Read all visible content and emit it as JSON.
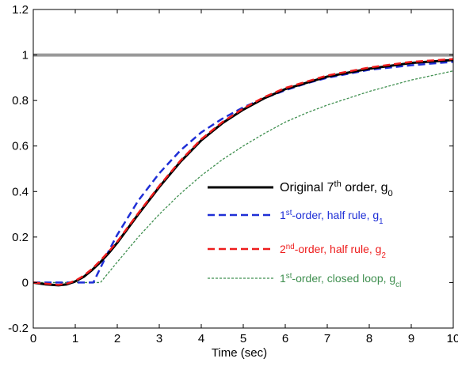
{
  "chart_data": {
    "type": "line",
    "xlabel": "Time (sec)",
    "xlim": [
      0,
      10
    ],
    "ylim": [
      -0.2,
      1.2
    ],
    "x_ticks": [
      0,
      1,
      2,
      3,
      4,
      5,
      6,
      7,
      8,
      9,
      10
    ],
    "y_ticks": [
      -0.2,
      0,
      0.2,
      0.4,
      0.6,
      0.8,
      1,
      1.2
    ],
    "x_tick_labels": [
      "0",
      "1",
      "2",
      "3",
      "4",
      "5",
      "6",
      "7",
      "8",
      "9",
      "10"
    ],
    "y_tick_labels": [
      "-0.2",
      "0",
      "0.2",
      "0.4",
      "0.6",
      "0.8",
      "1",
      "1.2"
    ],
    "reference_line": {
      "y": 1,
      "color": "#999999"
    },
    "legend_position": "center-right",
    "series": [
      {
        "name": "Original 7th order, g0",
        "legend_parts": [
          {
            "t": "Original 7",
            "s": "n"
          },
          {
            "t": "th",
            "s": "sup"
          },
          {
            "t": " order, g",
            "s": "n"
          },
          {
            "t": "0",
            "s": "sub"
          }
        ],
        "color": "#000000",
        "style": "solid",
        "width": 3,
        "x": [
          0,
          0.3,
          0.6,
          0.8,
          1.0,
          1.2,
          1.4,
          1.6,
          1.8,
          2.0,
          2.5,
          3.0,
          3.5,
          4.0,
          4.5,
          5.0,
          5.5,
          6.0,
          7.0,
          8.0,
          9.0,
          10.0
        ],
        "y": [
          0,
          -0.008,
          -0.012,
          -0.008,
          0.005,
          0.025,
          0.055,
          0.09,
          0.13,
          0.175,
          0.3,
          0.42,
          0.53,
          0.625,
          0.7,
          0.76,
          0.81,
          0.85,
          0.905,
          0.94,
          0.965,
          0.978
        ]
      },
      {
        "name": "1st-order, half rule, g1",
        "legend_parts": [
          {
            "t": "1",
            "s": "n"
          },
          {
            "t": "st",
            "s": "sup"
          },
          {
            "t": "-order, half rule, g",
            "s": "n"
          },
          {
            "t": "1",
            "s": "sub"
          }
        ],
        "color": "#1f2fd6",
        "style": "dashed",
        "width": 2.5,
        "x": [
          0,
          1.43,
          1.6,
          1.8,
          2.0,
          2.5,
          3.0,
          3.5,
          4.0,
          4.5,
          5.0,
          5.5,
          6.0,
          6.5,
          7.0,
          8.0,
          9.0,
          10.0
        ],
        "y": [
          0,
          0,
          0.065,
          0.14,
          0.21,
          0.36,
          0.48,
          0.58,
          0.66,
          0.72,
          0.77,
          0.81,
          0.845,
          0.875,
          0.9,
          0.935,
          0.955,
          0.97
        ]
      },
      {
        "name": "2nd-order, half rule, g2",
        "legend_parts": [
          {
            "t": "2",
            "s": "n"
          },
          {
            "t": "nd",
            "s": "sup"
          },
          {
            "t": "-order, half rule, g",
            "s": "n"
          },
          {
            "t": "2",
            "s": "sub"
          }
        ],
        "color": "#ee1c1c",
        "style": "dashed",
        "width": 2.5,
        "x": [
          0,
          0.3,
          0.6,
          0.8,
          1.0,
          1.2,
          1.4,
          1.6,
          1.8,
          2.0,
          2.5,
          3.0,
          3.5,
          4.0,
          4.5,
          5.0,
          5.5,
          6.0,
          7.0,
          8.0,
          9.0,
          10.0
        ],
        "y": [
          0,
          -0.005,
          -0.01,
          -0.005,
          0.008,
          0.03,
          0.06,
          0.097,
          0.137,
          0.18,
          0.305,
          0.425,
          0.535,
          0.63,
          0.705,
          0.765,
          0.815,
          0.855,
          0.91,
          0.945,
          0.97,
          0.982
        ]
      },
      {
        "name": "1st-order, closed loop, gcl",
        "legend_parts": [
          {
            "t": "1",
            "s": "n"
          },
          {
            "t": "st",
            "s": "sup"
          },
          {
            "t": "-order, closed loop, g",
            "s": "n"
          },
          {
            "t": "cl",
            "s": "sub"
          }
        ],
        "color": "#3f8f4f",
        "style": "dotted",
        "width": 1.3,
        "x": [
          0,
          1.6,
          1.8,
          2.0,
          2.5,
          3.0,
          3.5,
          4.0,
          4.5,
          5.0,
          5.5,
          6.0,
          6.5,
          7.0,
          8.0,
          9.0,
          10.0
        ],
        "y": [
          0,
          0,
          0.045,
          0.09,
          0.2,
          0.3,
          0.39,
          0.47,
          0.54,
          0.6,
          0.655,
          0.705,
          0.745,
          0.78,
          0.84,
          0.89,
          0.93
        ]
      }
    ]
  }
}
